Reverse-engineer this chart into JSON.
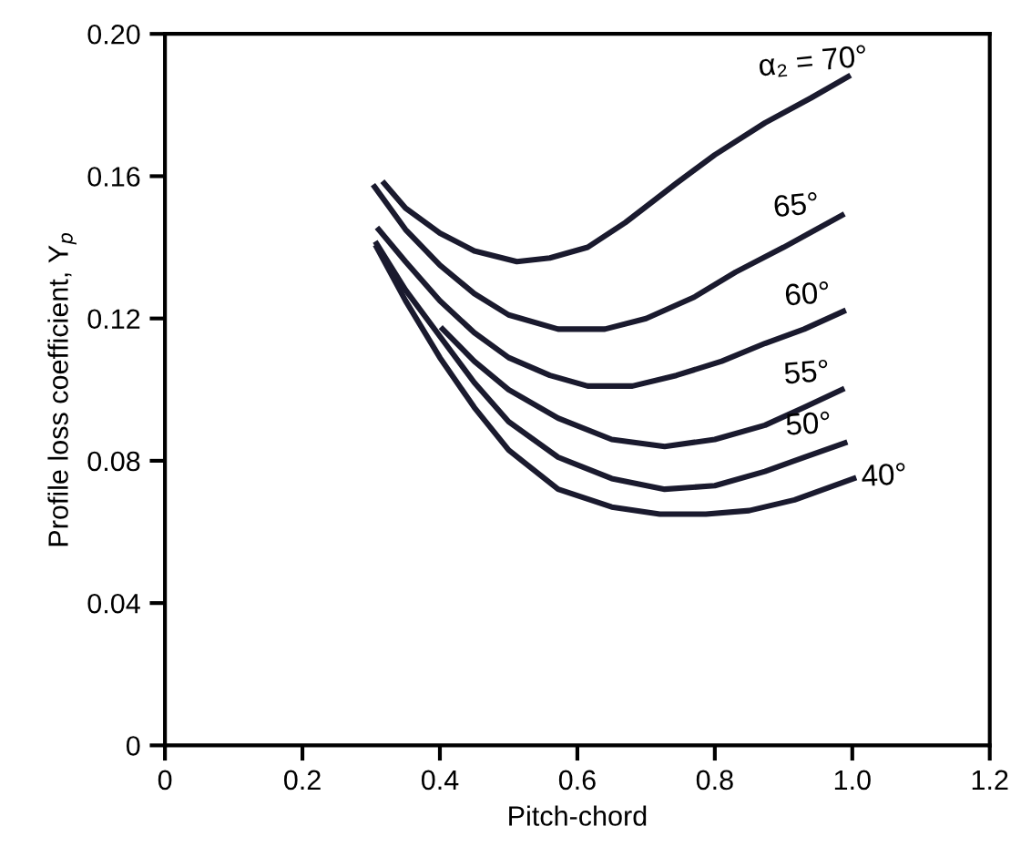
{
  "chart_data": {
    "type": "line",
    "xlabel": "Pitch-chord",
    "ylabel": "Profile loss coefficient, Y$_{p}$",
    "xlim": [
      0,
      1.2
    ],
    "xticks": [
      0,
      0.2,
      0.4,
      0.6,
      0.8,
      {
        "value": 1.0,
        "label": "1.0"
      },
      1.2
    ],
    "ylim": [
      0,
      0.2
    ],
    "yticks": [
      0,
      0.04,
      0.08,
      0.12,
      0.16,
      {
        "value": 0.2,
        "label": "0.20"
      }
    ],
    "grid": false,
    "legend": false,
    "marker": "none",
    "line_style": "solid",
    "series": [
      {
        "name": "α₂ = 70°",
        "color": "#1a1a2e",
        "x": [
          0.319,
          0.35,
          0.4,
          0.45,
          0.512,
          0.56,
          0.615,
          0.67,
          0.744,
          0.8,
          0.873,
          0.94,
          0.994
        ],
        "values": [
          0.158,
          0.151,
          0.144,
          0.139,
          0.136,
          0.137,
          0.14,
          0.147,
          0.158,
          0.166,
          0.175,
          0.182,
          0.188
        ]
      },
      {
        "name": "65°",
        "color": "#1a1a2e",
        "x": [
          0.305,
          0.35,
          0.4,
          0.45,
          0.5,
          0.572,
          0.64,
          0.7,
          0.77,
          0.83,
          0.9,
          0.985
        ],
        "values": [
          0.157,
          0.145,
          0.135,
          0.127,
          0.121,
          0.117,
          0.117,
          0.12,
          0.126,
          0.133,
          0.14,
          0.149
        ]
      },
      {
        "name": "60°",
        "color": "#1a1a2e",
        "x": [
          0.311,
          0.35,
          0.4,
          0.45,
          0.5,
          0.56,
          0.615,
          0.68,
          0.744,
          0.81,
          0.873,
          0.93,
          0.987
        ],
        "values": [
          0.145,
          0.136,
          0.125,
          0.116,
          0.109,
          0.104,
          0.101,
          0.101,
          0.104,
          0.108,
          0.113,
          0.117,
          0.122
        ]
      },
      {
        "name": "55°",
        "color": "#1a1a2e",
        "x": [
          0.404,
          0.45,
          0.5,
          0.572,
          0.65,
          0.727,
          0.8,
          0.873,
          0.93,
          0.985
        ],
        "values": [
          0.117,
          0.108,
          0.1,
          0.092,
          0.086,
          0.084,
          0.086,
          0.09,
          0.095,
          0.1
        ]
      },
      {
        "name": "50°",
        "color": "#1a1a2e",
        "x": [
          0.308,
          0.35,
          0.4,
          0.45,
          0.5,
          0.572,
          0.65,
          0.727,
          0.8,
          0.873,
          0.93,
          0.989
        ],
        "values": [
          0.141,
          0.128,
          0.115,
          0.102,
          0.091,
          0.081,
          0.075,
          0.072,
          0.073,
          0.077,
          0.081,
          0.085
        ]
      },
      {
        "name": "40°",
        "color": "#1a1a2e",
        "x": [
          0.308,
          0.35,
          0.4,
          0.45,
          0.5,
          0.572,
          0.65,
          0.72,
          0.787,
          0.85,
          0.916,
          1.002
        ],
        "values": [
          0.14,
          0.125,
          0.109,
          0.095,
          0.083,
          0.072,
          0.067,
          0.065,
          0.065,
          0.066,
          0.069,
          0.075
        ]
      }
    ]
  }
}
